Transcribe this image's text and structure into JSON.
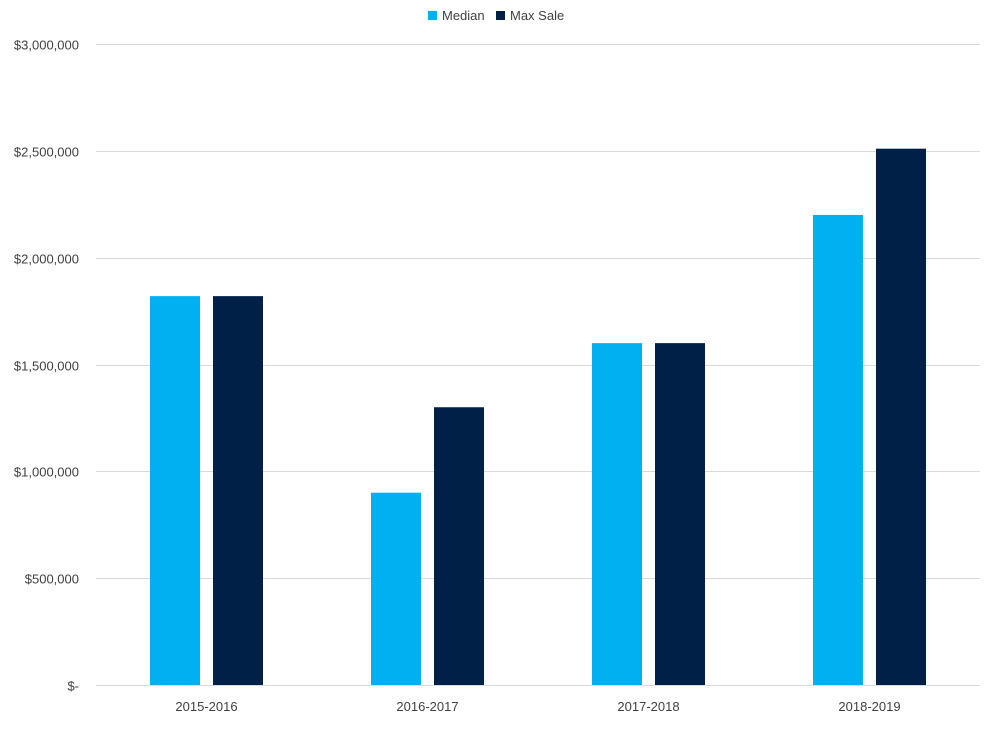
{
  "chart_data": {
    "type": "bar",
    "categories": [
      "2015-2016",
      "2016-2017",
      "2017-2018",
      "2018-2019"
    ],
    "series": [
      {
        "name": "Median",
        "values": [
          1820000,
          900000,
          1600000,
          2200000
        ],
        "color": "#00B0F0"
      },
      {
        "name": "Max Sale",
        "values": [
          1820000,
          1300000,
          1600000,
          2510000
        ],
        "color": "#002047"
      }
    ],
    "ylim": [
      0,
      3000000
    ],
    "yticks": [
      {
        "value": 0,
        "label": "$-"
      },
      {
        "value": 500000,
        "label": "$500,000"
      },
      {
        "value": 1000000,
        "label": "$1,000,000"
      },
      {
        "value": 1500000,
        "label": "$1,500,000"
      },
      {
        "value": 2000000,
        "label": "$2,000,000"
      },
      {
        "value": 2500000,
        "label": "$2,500,000"
      },
      {
        "value": 3000000,
        "label": "$3,000,000"
      }
    ],
    "grid": true,
    "legend_position": "top-center",
    "gridline_color": "#D9D9D9",
    "text_color": "#404040"
  }
}
